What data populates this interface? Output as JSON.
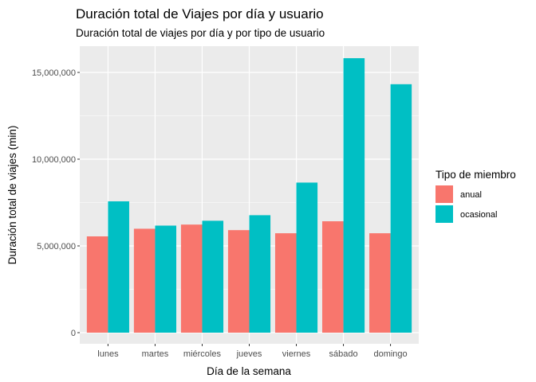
{
  "chart_data": {
    "type": "bar",
    "title": "Duración total de Viajes por día y usuario",
    "subtitle": "Duración total de viajes por día y por tipo de usuario",
    "xlabel": "Día de la semana",
    "ylabel": "Duración total de viajes (min)",
    "categories": [
      "lunes",
      "martes",
      "miércoles",
      "jueves",
      "viernes",
      "sábado",
      "domingo"
    ],
    "series": [
      {
        "name": "anual",
        "color": "#F8766D",
        "values": [
          5550000,
          5990000,
          6230000,
          5910000,
          5730000,
          6420000,
          5730000
        ]
      },
      {
        "name": "ocasional",
        "color": "#00BFC4",
        "values": [
          7570000,
          6170000,
          6450000,
          6770000,
          8650000,
          15820000,
          14320000
        ]
      }
    ],
    "ylim": [
      0,
      16500000
    ],
    "yticks": [
      0,
      5000000,
      10000000,
      15000000
    ],
    "ytick_labels": [
      "0",
      "5,000,000",
      "10,000,000",
      "15,000,000"
    ],
    "legend": {
      "title": "Tipo de miembro",
      "position": "right"
    },
    "grid": true,
    "panel_background": "#EBEBEB"
  }
}
